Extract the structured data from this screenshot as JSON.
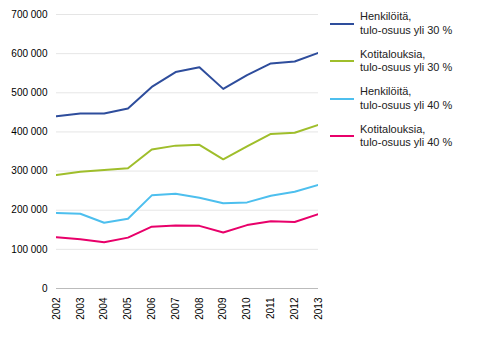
{
  "chart_data": {
    "type": "line",
    "x": [
      2002,
      2003,
      2004,
      2005,
      2006,
      2007,
      2008,
      2009,
      2010,
      2011,
      2012,
      2013
    ],
    "series": [
      {
        "name": "Henkilöitä,\ntulo-osuus yli 30 %",
        "color": "#2e4d9c",
        "values": [
          440000,
          447000,
          447000,
          460000,
          515000,
          553000,
          565000,
          510000,
          545000,
          575000,
          580000,
          602000
        ]
      },
      {
        "name": "Kotitalouksia,\ntulo-osuus yli 30 %",
        "color": "#9fbe2b",
        "values": [
          290000,
          298000,
          303000,
          307000,
          355000,
          365000,
          367000,
          330000,
          363000,
          395000,
          398000,
          418000
        ]
      },
      {
        "name": "Henkilöitä,\ntulo-osuus yli 40 %",
        "color": "#4dbfee",
        "values": [
          193000,
          191000,
          168000,
          178000,
          238000,
          242000,
          232000,
          218000,
          220000,
          237000,
          247000,
          265000
        ]
      },
      {
        "name": "Kotitalouksia,\ntulo-osuus yli 40 %",
        "color": "#e8006a",
        "values": [
          131000,
          126000,
          118000,
          130000,
          158000,
          161000,
          160000,
          143000,
          162000,
          172000,
          170000,
          190000
        ]
      }
    ],
    "xlim": [
      2002,
      2013
    ],
    "xticks": [
      2002,
      2003,
      2004,
      2005,
      2006,
      2007,
      2008,
      2009,
      2010,
      2011,
      2012,
      2013
    ],
    "ylim": [
      0,
      700000
    ],
    "yticks": [
      0,
      {
        "value": 100000,
        "label": "100 000"
      },
      {
        "value": 200000,
        "label": "200 000"
      },
      {
        "value": 300000,
        "label": "300 000"
      },
      {
        "value": 400000,
        "label": "400 000"
      },
      {
        "value": 500000,
        "label": "500 000"
      },
      {
        "value": 600000,
        "label": "600 000"
      },
      {
        "value": 700000,
        "label": "700 000"
      }
    ],
    "grid": "y",
    "legend": "right"
  }
}
